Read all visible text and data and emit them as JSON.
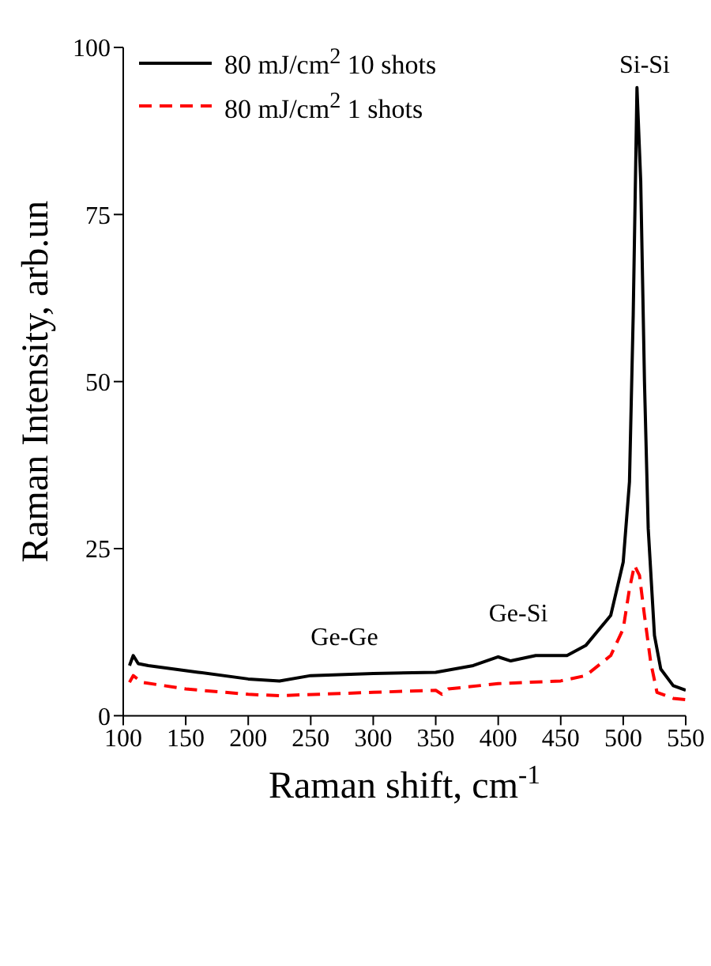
{
  "chart_data": {
    "type": "line",
    "xlabel": "Raman shift, cm$^{-1}$",
    "ylabel": "Raman Intensity, arb.un",
    "xlim": [
      100,
      550
    ],
    "xticks": [
      100,
      150,
      200,
      250,
      300,
      350,
      400,
      450,
      500,
      550
    ],
    "ylim": [
      0,
      100
    ],
    "yticks": [
      0,
      25,
      50,
      75,
      100
    ],
    "grid": false,
    "legend": "top left",
    "marker": "none",
    "series": [
      {
        "name": "80 mJ/cm$^{2}$ 10 shots",
        "color": "#000000",
        "line_style": "solid",
        "x": [
          105,
          108,
          112,
          120,
          140,
          160,
          200,
          225,
          250,
          300,
          350,
          380,
          400,
          410,
          430,
          455,
          470,
          490,
          500,
          505,
          508,
          511,
          514,
          517,
          520,
          525,
          530,
          540,
          550
        ],
        "values": [
          7.5,
          9,
          7.8,
          7.5,
          7,
          6.5,
          5.5,
          5.2,
          6,
          6.3,
          6.5,
          7.5,
          8.8,
          8.2,
          9,
          9,
          10.5,
          15,
          23,
          35,
          60,
          94,
          80,
          50,
          28,
          12,
          7,
          4.5,
          3.8
        ]
      },
      {
        "name": "80 mJ/cm$^{2}$ 1 shots",
        "color": "#ff0000",
        "line_style": "dashed",
        "x": [
          105,
          108,
          115,
          150,
          200,
          225,
          300,
          350,
          355,
          360,
          400,
          450,
          470,
          490,
          500,
          505,
          509,
          513,
          517,
          522,
          527,
          540,
          550
        ],
        "values": [
          5,
          6,
          5,
          4,
          3.2,
          3,
          3.5,
          3.8,
          3.2,
          4,
          4.8,
          5.2,
          6,
          9,
          13,
          19,
          22.5,
          21,
          15,
          8,
          3.5,
          2.6,
          2.4
        ]
      }
    ],
    "annotations": [
      "Ge-Ge",
      "Ge-Si",
      "Si-Si"
    ]
  }
}
